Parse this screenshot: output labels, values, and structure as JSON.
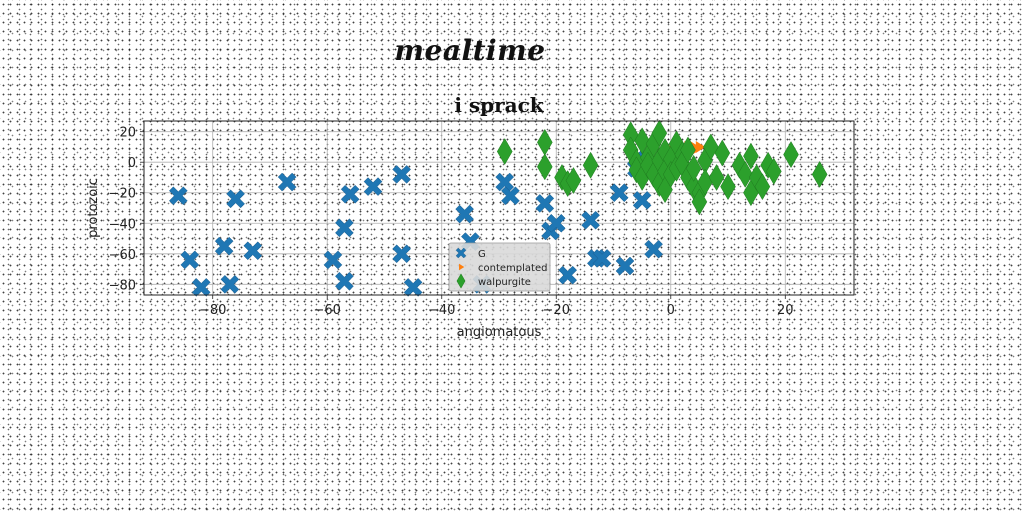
{
  "page_title": "mealtime",
  "chart_data": {
    "type": "scatter",
    "title": "i sprack",
    "xlabel": "angiomatous",
    "ylabel": "protozoic",
    "xlim": [
      -92,
      32
    ],
    "ylim": [
      -87,
      27
    ],
    "xticks": [
      -80,
      -60,
      -40,
      -20,
      0,
      20
    ],
    "yticks": [
      20,
      0,
      -20,
      -40,
      -60,
      -80
    ],
    "tick_labels_x": [
      "−80",
      "−60",
      "−40",
      "−20",
      "0",
      "20"
    ],
    "tick_labels_y": [
      "20",
      "0",
      "−20",
      "−40",
      "−60",
      "−80"
    ],
    "grid": true,
    "legend_position": "lower-center",
    "series": [
      {
        "name": "G",
        "color": "#1f77b4",
        "marker": "X",
        "points": [
          [
            -86,
            -22
          ],
          [
            -84,
            -64
          ],
          [
            -82,
            -82
          ],
          [
            -78,
            -55
          ],
          [
            -77,
            -80
          ],
          [
            -76,
            -24
          ],
          [
            -73,
            -58
          ],
          [
            -67,
            -13
          ],
          [
            -59,
            -64
          ],
          [
            -57,
            -43
          ],
          [
            -57,
            -78
          ],
          [
            -56,
            -21
          ],
          [
            -52,
            -16
          ],
          [
            -47,
            -8
          ],
          [
            -47,
            -60
          ],
          [
            -45,
            -82
          ],
          [
            -36,
            -34
          ],
          [
            -35,
            -52
          ],
          [
            -33,
            -80
          ],
          [
            -29,
            -13
          ],
          [
            -28,
            -22
          ],
          [
            -22,
            -27
          ],
          [
            -21,
            -45
          ],
          [
            -20,
            -40
          ],
          [
            -18,
            -74
          ],
          [
            -14,
            -38
          ],
          [
            -13,
            -63
          ],
          [
            -12,
            -63
          ],
          [
            -9,
            -20
          ],
          [
            -8,
            -68
          ],
          [
            -6,
            -4
          ],
          [
            -6,
            2
          ],
          [
            -5,
            -25
          ],
          [
            -3,
            -57
          ]
        ]
      },
      {
        "name": "contemplated",
        "color": "#ff7f0e",
        "marker": "triangle-right",
        "points": [
          [
            -1,
            6
          ],
          [
            0,
            6
          ],
          [
            1,
            7
          ],
          [
            1,
            8
          ],
          [
            2,
            8
          ],
          [
            2,
            9
          ],
          [
            3,
            8
          ],
          [
            3,
            10
          ],
          [
            4,
            9
          ],
          [
            4,
            10
          ],
          [
            5,
            10
          ],
          [
            1,
            9
          ],
          [
            0,
            8
          ],
          [
            2,
            10
          ],
          [
            3,
            7
          ],
          [
            4,
            8
          ]
        ]
      },
      {
        "name": "walpurgite",
        "color": "#2ca02c",
        "marker": "thin-diamond",
        "points": [
          [
            -29,
            7
          ],
          [
            -22,
            13
          ],
          [
            -22,
            -3
          ],
          [
            -19,
            -10
          ],
          [
            -18,
            -14
          ],
          [
            -17,
            -12
          ],
          [
            -14,
            -2
          ],
          [
            -7,
            18
          ],
          [
            -7,
            8
          ],
          [
            -6,
            0
          ],
          [
            -6,
            -5
          ],
          [
            -5,
            -10
          ],
          [
            -5,
            14
          ],
          [
            -4,
            3
          ],
          [
            -4,
            -2
          ],
          [
            -3,
            12
          ],
          [
            -3,
            -8
          ],
          [
            -2,
            19
          ],
          [
            -2,
            1
          ],
          [
            -2,
            -14
          ],
          [
            -1,
            7
          ],
          [
            -1,
            -6
          ],
          [
            -1,
            -18
          ],
          [
            0,
            2
          ],
          [
            0,
            -8
          ],
          [
            1,
            -4
          ],
          [
            1,
            12
          ],
          [
            2,
            5
          ],
          [
            2,
            -1
          ],
          [
            3,
            -10
          ],
          [
            3,
            8
          ],
          [
            4,
            -16
          ],
          [
            4,
            -4
          ],
          [
            5,
            -20
          ],
          [
            5,
            -26
          ],
          [
            6,
            1
          ],
          [
            6,
            -13
          ],
          [
            7,
            10
          ],
          [
            8,
            -10
          ],
          [
            9,
            6
          ],
          [
            10,
            -16
          ],
          [
            12,
            -2
          ],
          [
            13,
            -8
          ],
          [
            14,
            -20
          ],
          [
            14,
            4
          ],
          [
            15,
            -10
          ],
          [
            16,
            -16
          ],
          [
            17,
            -2
          ],
          [
            18,
            -6
          ],
          [
            21,
            5
          ],
          [
            26,
            -8
          ]
        ]
      }
    ]
  }
}
